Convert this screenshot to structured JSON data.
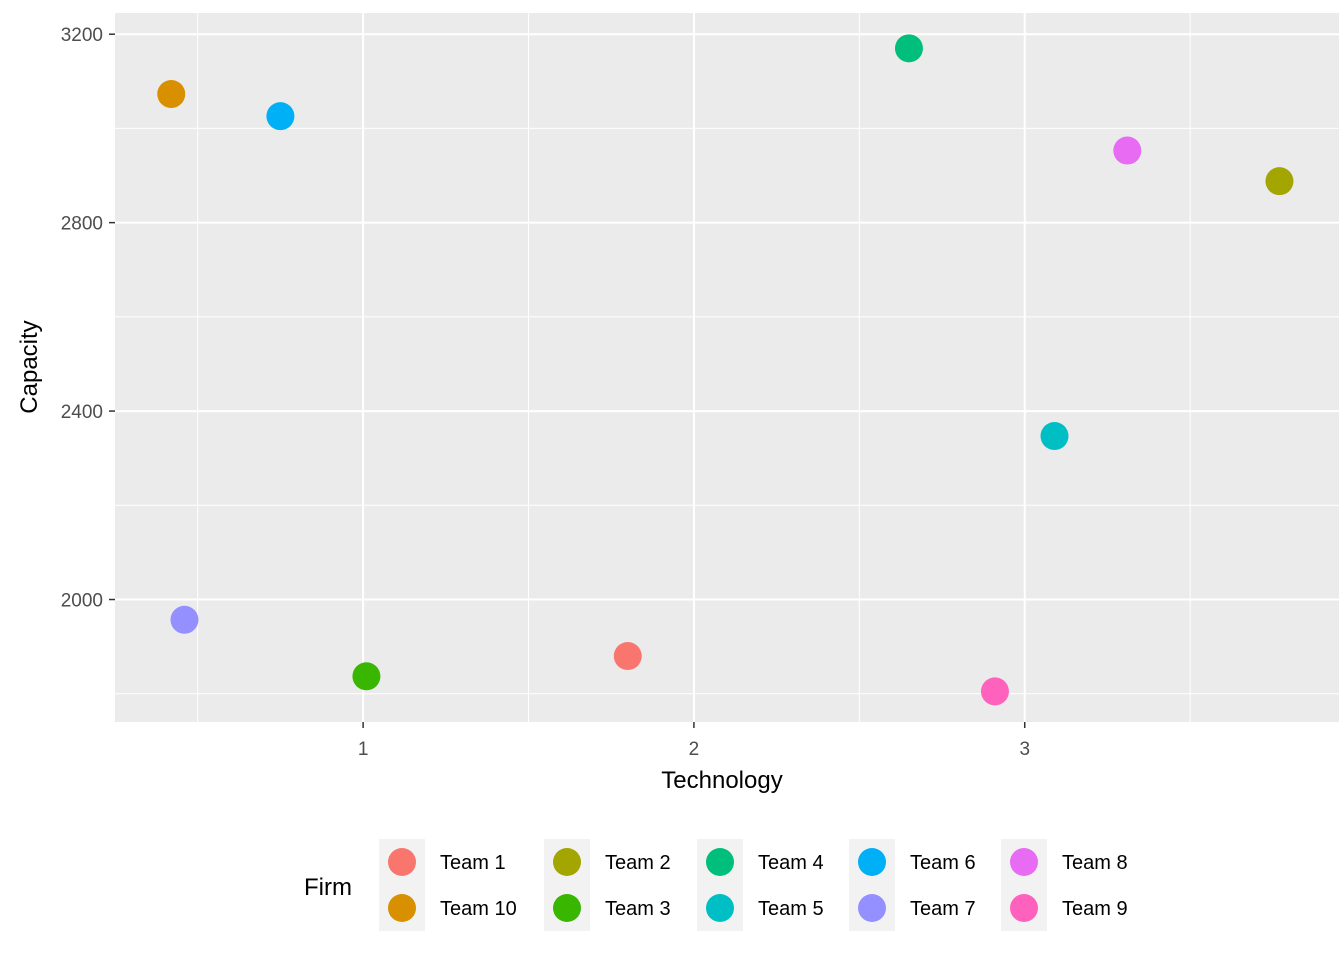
{
  "chart_data": {
    "type": "scatter",
    "title": "",
    "xlabel": "Technology",
    "ylabel": "Capacity",
    "xlim": [
      0.25,
      3.95
    ],
    "ylim": [
      1740,
      3245
    ],
    "x_ticks": [
      1,
      2,
      3
    ],
    "x_minor_ticks": [
      0.5,
      1.5,
      2.5,
      3.5
    ],
    "y_ticks": [
      2000,
      2400,
      2800,
      3200
    ],
    "y_minor_ticks": [
      1800,
      2200,
      2600,
      3000
    ],
    "grid": true,
    "legend": {
      "title": "Firm",
      "position": "bottom"
    },
    "series": [
      {
        "name": "Team 1",
        "color": "#F8766D",
        "x": 1.8,
        "y": 1880
      },
      {
        "name": "Team 10",
        "color": "#D89000",
        "x": 0.42,
        "y": 3073
      },
      {
        "name": "Team 2",
        "color": "#A3A500",
        "x": 3.77,
        "y": 2888
      },
      {
        "name": "Team 3",
        "color": "#39B600",
        "x": 1.01,
        "y": 1837
      },
      {
        "name": "Team 4",
        "color": "#00BF7D",
        "x": 2.65,
        "y": 3170
      },
      {
        "name": "Team 5",
        "color": "#00BFC4",
        "x": 3.09,
        "y": 2347
      },
      {
        "name": "Team 6",
        "color": "#00B0F6",
        "x": 0.75,
        "y": 3026
      },
      {
        "name": "Team 7",
        "color": "#9590FF",
        "x": 0.46,
        "y": 1957
      },
      {
        "name": "Team 8",
        "color": "#E76BF3",
        "x": 3.31,
        "y": 2953
      },
      {
        "name": "Team 9",
        "color": "#FF62BC",
        "x": 2.91,
        "y": 1805
      }
    ]
  }
}
